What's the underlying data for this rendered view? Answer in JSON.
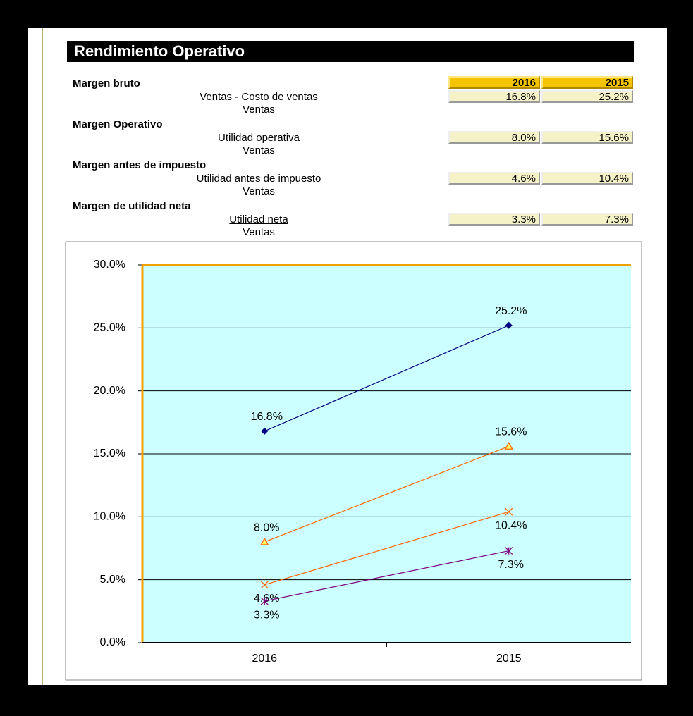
{
  "header": {
    "title": "Rendimiento Operativo"
  },
  "table": {
    "years": [
      "2016",
      "2015"
    ],
    "sections": [
      {
        "label": "Margen bruto",
        "numerator": "Ventas - Costo de ventas",
        "denominator": "Ventas",
        "values": [
          "16.8%",
          "25.2%"
        ]
      },
      {
        "label": "Margen Operativo",
        "numerator": "Utilidad operativa",
        "denominator": "Ventas",
        "values": [
          "8.0%",
          "15.6%"
        ]
      },
      {
        "label": "Margen antes de impuesto",
        "numerator": "Utilidad antes de impuesto",
        "denominator": "Ventas",
        "values": [
          "4.6%",
          "10.4%"
        ]
      },
      {
        "label": "Margen de utilidad neta",
        "numerator": "Utilidad neta",
        "denominator": "Ventas",
        "values": [
          "3.3%",
          "7.3%"
        ]
      }
    ]
  },
  "chart_data": {
    "type": "line",
    "categories": [
      "2016",
      "2015"
    ],
    "series": [
      {
        "color": "#000080",
        "marker": "diamond",
        "values": [
          16.8,
          25.2
        ],
        "value_labels": [
          "16.8%",
          "25.2%"
        ]
      },
      {
        "color": "#ff6600",
        "marker": "triangle",
        "values": [
          8.0,
          15.6
        ],
        "value_labels": [
          "8.0%",
          "15.6%"
        ]
      },
      {
        "color": "#ff6600",
        "marker": "x",
        "values": [
          4.6,
          10.4
        ],
        "value_labels": [
          "4.6%",
          "10.4%"
        ]
      },
      {
        "color": "#800080",
        "marker": "star",
        "values": [
          3.3,
          7.3
        ],
        "value_labels": [
          "3.3%",
          "7.3%"
        ]
      }
    ],
    "ylim": [
      0,
      30
    ],
    "yticks": [
      {
        "value": 0,
        "label": "0.0%"
      },
      {
        "value": 5,
        "label": "5.0%"
      },
      {
        "value": 10,
        "label": "10.0%"
      },
      {
        "value": 15,
        "label": "15.0%"
      },
      {
        "value": 20,
        "label": "20.0%"
      },
      {
        "value": 25,
        "label": "25.0%"
      },
      {
        "value": 30,
        "label": "30.0%"
      }
    ],
    "grid": true
  }
}
